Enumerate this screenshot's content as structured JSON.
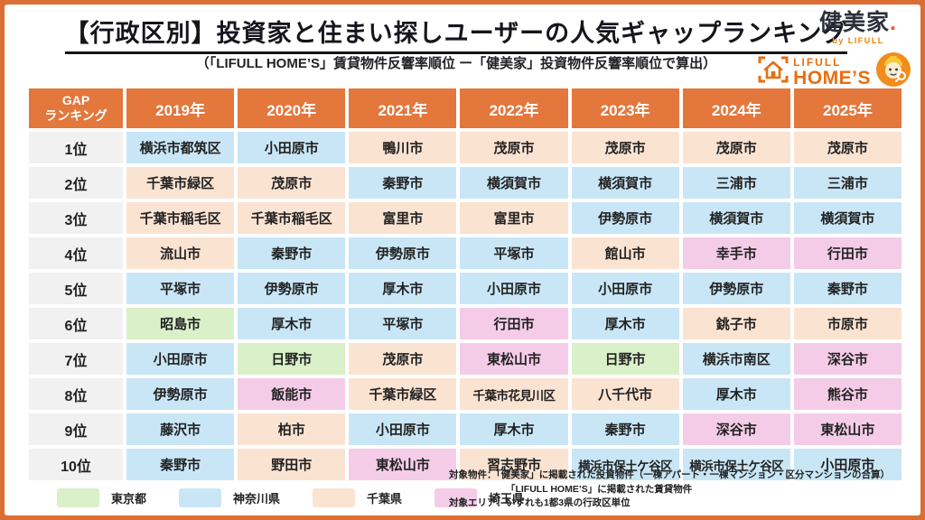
{
  "header": {
    "title": "【行政区別】投資家と住まい探しユーザーの人気ギャップランキング",
    "subtitle": "（「LIFULL HOME’S」賃貸物件反響率順位 ー「健美家」投資物件反響率順位で算出）",
    "kenbiya_logo": {
      "text": "健美家",
      "dot": ".",
      "byline": "by LIFULL"
    },
    "homes_logo": {
      "line1": "LIFULL",
      "line2": "HOME’S"
    }
  },
  "table": {
    "rank_header_line1": "GAP",
    "rank_header_line2": "ランキング",
    "year_headers": [
      "2019年",
      "2020年",
      "2021年",
      "2022年",
      "2023年",
      "2024年",
      "2025年"
    ],
    "rows": [
      {
        "rank": "1位",
        "cells": [
          {
            "name": "横浜市都筑区",
            "pref": "kanagawa"
          },
          {
            "name": "小田原市",
            "pref": "kanagawa"
          },
          {
            "name": "鴨川市",
            "pref": "chiba"
          },
          {
            "name": "茂原市",
            "pref": "chiba"
          },
          {
            "name": "茂原市",
            "pref": "chiba"
          },
          {
            "name": "茂原市",
            "pref": "chiba"
          },
          {
            "name": "茂原市",
            "pref": "chiba"
          }
        ]
      },
      {
        "rank": "2位",
        "cells": [
          {
            "name": "千葉市緑区",
            "pref": "chiba"
          },
          {
            "name": "茂原市",
            "pref": "chiba"
          },
          {
            "name": "秦野市",
            "pref": "kanagawa"
          },
          {
            "name": "横須賀市",
            "pref": "kanagawa"
          },
          {
            "name": "横須賀市",
            "pref": "kanagawa"
          },
          {
            "name": "三浦市",
            "pref": "kanagawa"
          },
          {
            "name": "三浦市",
            "pref": "kanagawa"
          }
        ]
      },
      {
        "rank": "3位",
        "cells": [
          {
            "name": "千葉市稲毛区",
            "pref": "chiba"
          },
          {
            "name": "千葉市稲毛区",
            "pref": "chiba"
          },
          {
            "name": "富里市",
            "pref": "chiba"
          },
          {
            "name": "富里市",
            "pref": "chiba"
          },
          {
            "name": "伊勢原市",
            "pref": "kanagawa"
          },
          {
            "name": "横須賀市",
            "pref": "kanagawa"
          },
          {
            "name": "横須賀市",
            "pref": "kanagawa"
          }
        ]
      },
      {
        "rank": "4位",
        "cells": [
          {
            "name": "流山市",
            "pref": "chiba"
          },
          {
            "name": "秦野市",
            "pref": "kanagawa"
          },
          {
            "name": "伊勢原市",
            "pref": "kanagawa"
          },
          {
            "name": "平塚市",
            "pref": "kanagawa"
          },
          {
            "name": "館山市",
            "pref": "chiba"
          },
          {
            "name": "幸手市",
            "pref": "saitama"
          },
          {
            "name": "行田市",
            "pref": "saitama"
          }
        ]
      },
      {
        "rank": "5位",
        "cells": [
          {
            "name": "平塚市",
            "pref": "kanagawa"
          },
          {
            "name": "伊勢原市",
            "pref": "kanagawa"
          },
          {
            "name": "厚木市",
            "pref": "kanagawa"
          },
          {
            "name": "小田原市",
            "pref": "kanagawa"
          },
          {
            "name": "小田原市",
            "pref": "kanagawa"
          },
          {
            "name": "伊勢原市",
            "pref": "kanagawa"
          },
          {
            "name": "秦野市",
            "pref": "kanagawa"
          }
        ]
      },
      {
        "rank": "6位",
        "cells": [
          {
            "name": "昭島市",
            "pref": "tokyo"
          },
          {
            "name": "厚木市",
            "pref": "kanagawa"
          },
          {
            "name": "平塚市",
            "pref": "kanagawa"
          },
          {
            "name": "行田市",
            "pref": "saitama"
          },
          {
            "name": "厚木市",
            "pref": "kanagawa"
          },
          {
            "name": "銚子市",
            "pref": "chiba"
          },
          {
            "name": "市原市",
            "pref": "chiba"
          }
        ]
      },
      {
        "rank": "7位",
        "cells": [
          {
            "name": "小田原市",
            "pref": "kanagawa"
          },
          {
            "name": "日野市",
            "pref": "tokyo"
          },
          {
            "name": "茂原市",
            "pref": "chiba"
          },
          {
            "name": "東松山市",
            "pref": "saitama"
          },
          {
            "name": "日野市",
            "pref": "tokyo"
          },
          {
            "name": "横浜市南区",
            "pref": "kanagawa"
          },
          {
            "name": "深谷市",
            "pref": "saitama"
          }
        ]
      },
      {
        "rank": "8位",
        "cells": [
          {
            "name": "伊勢原市",
            "pref": "kanagawa"
          },
          {
            "name": "飯能市",
            "pref": "saitama"
          },
          {
            "name": "千葉市緑区",
            "pref": "chiba"
          },
          {
            "name": "千葉市花見川区",
            "pref": "chiba"
          },
          {
            "name": "八千代市",
            "pref": "chiba"
          },
          {
            "name": "厚木市",
            "pref": "kanagawa"
          },
          {
            "name": "熊谷市",
            "pref": "saitama"
          }
        ]
      },
      {
        "rank": "9位",
        "cells": [
          {
            "name": "藤沢市",
            "pref": "kanagawa"
          },
          {
            "name": "柏市",
            "pref": "chiba"
          },
          {
            "name": "小田原市",
            "pref": "kanagawa"
          },
          {
            "name": "厚木市",
            "pref": "kanagawa"
          },
          {
            "name": "秦野市",
            "pref": "kanagawa"
          },
          {
            "name": "深谷市",
            "pref": "saitama"
          },
          {
            "name": "東松山市",
            "pref": "saitama"
          }
        ]
      },
      {
        "rank": "10位",
        "cells": [
          {
            "name": "秦野市",
            "pref": "kanagawa"
          },
          {
            "name": "野田市",
            "pref": "chiba"
          },
          {
            "name": "東松山市",
            "pref": "saitama"
          },
          {
            "name": "習志野市",
            "pref": "chiba"
          },
          {
            "name": "横浜市保土ケ谷区",
            "pref": "kanagawa"
          },
          {
            "name": "横浜市保土ケ谷区",
            "pref": "kanagawa"
          },
          {
            "name": "小田原市",
            "pref": "kanagawa"
          }
        ]
      }
    ]
  },
  "legend": {
    "items": [
      {
        "label": "東京都",
        "key": "tokyo"
      },
      {
        "label": "神奈川県",
        "key": "kanagawa"
      },
      {
        "label": "千葉県",
        "key": "chiba"
      },
      {
        "label": "埼玉県",
        "key": "saitama"
      }
    ]
  },
  "footer": {
    "line1": "対象物件：「健美家」に掲載された投資物件（一棟アパート・一棟マンション・区分マンションの合算）",
    "line2": "「LIFULL HOME’S」に掲載された賃貸物件",
    "line3": "対象エリア：いずれも1都3県の行政区単位"
  },
  "colors": {
    "frame": "#DB6E33",
    "header_bg": "#E3773C",
    "rank_bg": "#F1F1F1",
    "tokyo": "#D9F0C9",
    "kanagawa": "#C9E6F6",
    "chiba": "#FBE3D2",
    "saitama": "#F4CCE8"
  }
}
